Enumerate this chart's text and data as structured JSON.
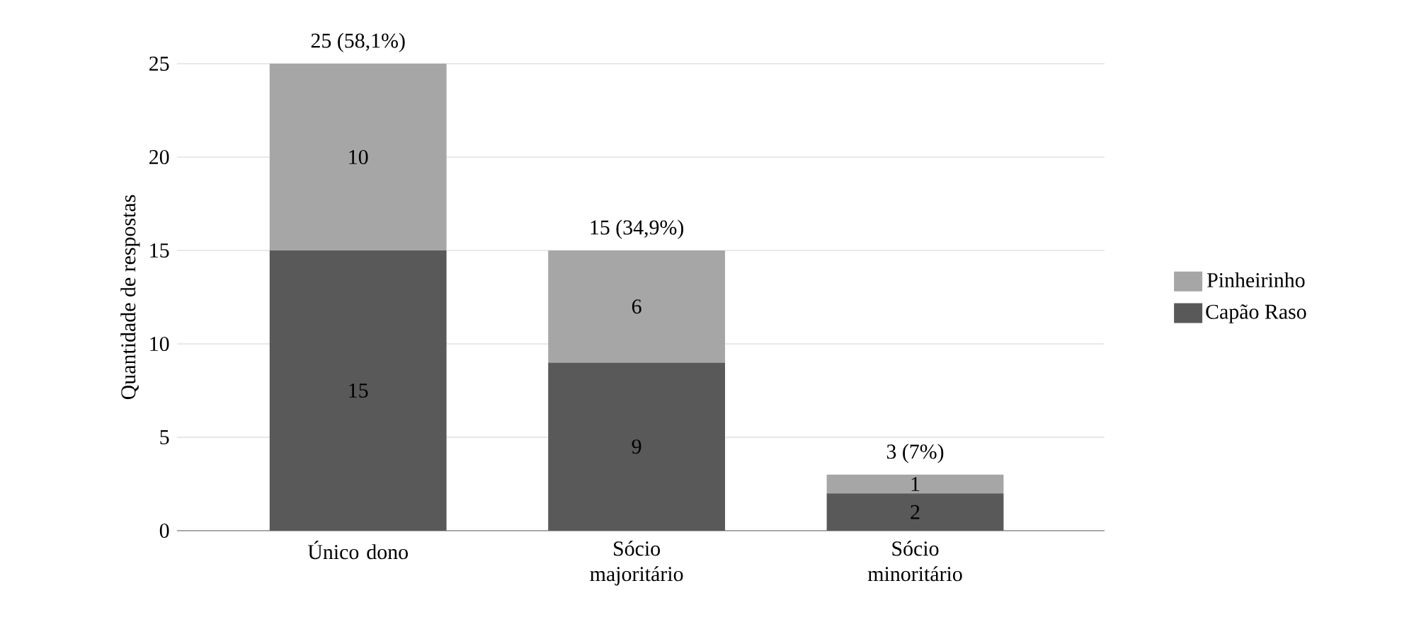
{
  "chart_data": {
    "type": "bar",
    "stacked": true,
    "ylabel": "Quantidade de respostas",
    "categories": [
      "Único dono",
      "Sócio majoritário",
      "Sócio minoritário"
    ],
    "series": [
      {
        "name": "Capão Raso",
        "color": "#595959",
        "values": [
          15,
          9,
          2
        ]
      },
      {
        "name": "Pinheirinho",
        "color": "#a6a6a6",
        "values": [
          10,
          6,
          1
        ]
      }
    ],
    "totals": [
      "25 (58,1%)",
      "15 (34,9%)",
      "3 (7%)"
    ],
    "ylim": [
      0,
      25
    ],
    "yticks": [
      0,
      5,
      10,
      15,
      20,
      25
    ],
    "grid": "y",
    "legend": "right",
    "data_labels": true
  }
}
